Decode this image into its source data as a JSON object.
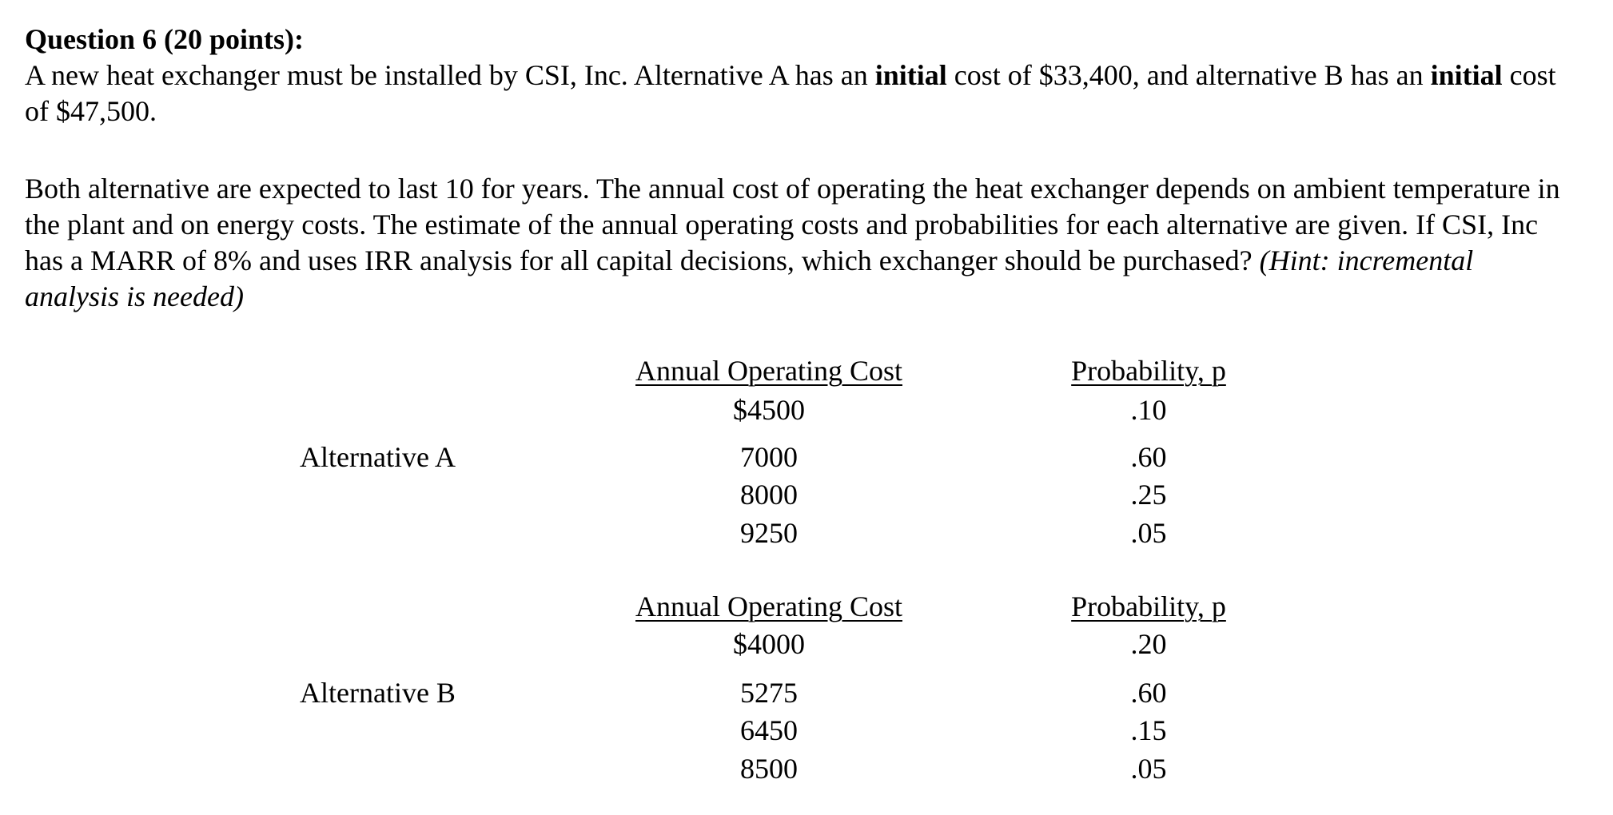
{
  "question": {
    "title": "Question 6 (20 points):",
    "paragraphs": [
      [
        {
          "text": "A new heat exchanger must be installed by CSI, Inc. Alternative A has an "
        },
        {
          "text": "initial",
          "style": "bold"
        },
        {
          "text": " cost of $33,400, and alternative B has an "
        },
        {
          "text": "initial",
          "style": "bold"
        },
        {
          "text": " cost of $47,500."
        }
      ],
      [
        {
          "text": "Both alternative are expected to last 10 for years. The annual cost of operating the heat exchanger depends on ambient temperature in the plant and on energy costs. The estimate of the annual operating costs and probabilities for each alternative are given. If CSI, Inc has a MARR of 8% and uses IRR analysis for all capital decisions, which exchanger should be purchased? "
        },
        {
          "text": "(Hint: incremental analysis is needed)",
          "style": "italic"
        }
      ]
    ],
    "alternatives": [
      {
        "label": "Alternative A",
        "headers": [
          "Annual Operating Cost",
          "Probability, p"
        ],
        "rows": [
          [
            "$4500",
            ".10"
          ],
          [
            "7000",
            ".60"
          ],
          [
            "8000",
            ".25"
          ],
          [
            "9250",
            ".05"
          ]
        ]
      },
      {
        "label": "Alternative B",
        "headers": [
          "Annual Operating Cost",
          "Probability, p"
        ],
        "rows": [
          [
            "$4000",
            ".20"
          ],
          [
            "5275",
            ".60"
          ],
          [
            "6450",
            ".15"
          ],
          [
            "8500",
            ".05"
          ]
        ]
      }
    ]
  }
}
